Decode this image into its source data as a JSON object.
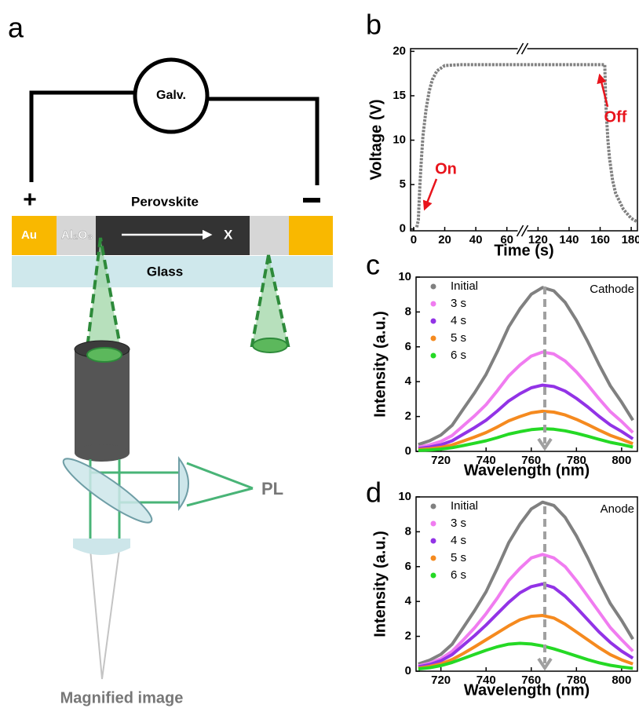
{
  "diagram": {
    "label": "a",
    "galvanometer": "Galv.",
    "plus": "+",
    "perovskite": "Perovskite",
    "electrode": "Au",
    "insulator": "Al₂O₃",
    "direction": "X",
    "substrate": "Glass",
    "signal": "PL",
    "output": "Magnified image"
  },
  "chart_data": [
    {
      "type": "line",
      "label": "b",
      "xlabel": "Time (s)",
      "ylabel": "Voltage (V)",
      "color": "#808080",
      "x": [
        2,
        3,
        3.5,
        4,
        5,
        6,
        8,
        10,
        12,
        15,
        20,
        30,
        50,
        60,
        120,
        140,
        160,
        163,
        163.5,
        164,
        165,
        166,
        168,
        170,
        175,
        180,
        184
      ],
      "values": [
        0.2,
        1,
        3,
        5,
        8,
        10.5,
        13.5,
        15.5,
        16.8,
        17.8,
        18.4,
        18.5,
        18.5,
        18.5,
        18.5,
        18.5,
        18.5,
        18.5,
        15,
        13,
        10,
        8,
        5.5,
        4,
        2.2,
        1.2,
        0.8
      ],
      "xlim": [
        -2,
        184
      ],
      "x_break": [
        68,
        112
      ],
      "xticks": [
        0,
        20,
        40,
        60,
        120,
        140,
        160,
        180
      ],
      "ylim": [
        -0.2,
        20.3
      ],
      "yticks": [
        0,
        5,
        10,
        15,
        20
      ],
      "annotations": [
        "On",
        "Off"
      ]
    },
    {
      "type": "line",
      "label": "c",
      "xlabel": "Wavelength (nm)",
      "ylabel": "Intensity (a.u.)",
      "annotation": "Cathode",
      "legend": "upper left",
      "x": [
        710,
        715,
        720,
        725,
        730,
        735,
        740,
        745,
        750,
        755,
        760,
        765,
        770,
        775,
        780,
        785,
        790,
        795,
        800,
        805
      ],
      "series": [
        {
          "name": "Initial",
          "color": "#808080",
          "values": [
            0.39,
            0.61,
            0.94,
            1.5,
            2.44,
            3.38,
            4.42,
            5.73,
            7.14,
            8.18,
            9.02,
            9.4,
            9.21,
            8.55,
            7.52,
            6.3,
            4.98,
            3.76,
            2.82,
            1.79
          ]
        },
        {
          "name": "3 s",
          "color": "#f07cf0",
          "values": [
            0.24,
            0.37,
            0.57,
            0.91,
            1.48,
            2.05,
            2.68,
            3.48,
            4.33,
            4.96,
            5.47,
            5.7,
            5.59,
            5.19,
            4.56,
            3.82,
            3.02,
            2.28,
            1.71,
            1.08
          ]
        },
        {
          "name": "4 s",
          "color": "#9233e6",
          "values": [
            0.16,
            0.25,
            0.38,
            0.61,
            0.99,
            1.37,
            1.79,
            2.32,
            2.89,
            3.31,
            3.65,
            3.8,
            3.72,
            3.46,
            3.04,
            2.55,
            2.01,
            1.52,
            1.14,
            0.72
          ]
        },
        {
          "name": "5 s",
          "color": "#f58a1f",
          "values": [
            0.1,
            0.15,
            0.23,
            0.37,
            0.6,
            0.83,
            1.08,
            1.4,
            1.75,
            2.0,
            2.21,
            2.3,
            2.25,
            2.09,
            1.84,
            1.54,
            1.22,
            0.92,
            0.69,
            0.44
          ]
        },
        {
          "name": "6 s",
          "color": "#25d925",
          "values": [
            0.05,
            0.08,
            0.13,
            0.21,
            0.34,
            0.47,
            0.61,
            0.79,
            0.99,
            1.13,
            1.25,
            1.3,
            1.27,
            1.18,
            1.04,
            0.87,
            0.69,
            0.52,
            0.39,
            0.25
          ]
        }
      ],
      "xlim": [
        709,
        807
      ],
      "xticks": [
        720,
        740,
        760,
        780,
        800
      ],
      "ylim": [
        0,
        10
      ],
      "yticks": [
        0,
        2,
        4,
        6,
        8,
        10
      ]
    },
    {
      "type": "line",
      "label": "d",
      "xlabel": "Wavelength (nm)",
      "ylabel": "Intensity (a.u.)",
      "annotation": "Anode",
      "legend": "upper left",
      "x": [
        710,
        715,
        720,
        725,
        730,
        735,
        740,
        745,
        750,
        755,
        760,
        765,
        770,
        775,
        780,
        785,
        790,
        795,
        800,
        805
      ],
      "series": [
        {
          "name": "Initial",
          "color": "#808080",
          "values": [
            0.41,
            0.63,
            0.97,
            1.55,
            2.52,
            3.49,
            4.56,
            5.92,
            7.37,
            8.44,
            9.31,
            9.7,
            9.51,
            8.83,
            7.76,
            6.5,
            5.14,
            3.88,
            2.91,
            1.84
          ]
        },
        {
          "name": "3 s",
          "color": "#f07cf0",
          "values": [
            0.3,
            0.46,
            0.71,
            1.14,
            1.8,
            2.5,
            3.3,
            4.2,
            5.2,
            5.9,
            6.5,
            6.7,
            6.5,
            6.0,
            5.2,
            4.3,
            3.4,
            2.5,
            1.8,
            1.15
          ]
        },
        {
          "name": "4 s",
          "color": "#9233e6",
          "values": [
            0.25,
            0.38,
            0.6,
            0.95,
            1.5,
            2.05,
            2.65,
            3.3,
            3.95,
            4.5,
            4.85,
            5.0,
            4.8,
            4.3,
            3.65,
            2.95,
            2.25,
            1.65,
            1.15,
            0.75
          ]
        },
        {
          "name": "5 s",
          "color": "#f58a1f",
          "values": [
            0.17,
            0.27,
            0.42,
            0.67,
            1.02,
            1.4,
            1.8,
            2.2,
            2.6,
            2.95,
            3.15,
            3.2,
            3.05,
            2.7,
            2.25,
            1.8,
            1.35,
            0.95,
            0.65,
            0.42
          ]
        },
        {
          "name": "6 s",
          "color": "#25d925",
          "values": [
            0.13,
            0.2,
            0.32,
            0.5,
            0.73,
            0.97,
            1.2,
            1.4,
            1.55,
            1.6,
            1.56,
            1.45,
            1.28,
            1.08,
            0.87,
            0.66,
            0.48,
            0.34,
            0.24,
            0.16
          ]
        }
      ],
      "xlim": [
        709,
        807
      ],
      "xticks": [
        720,
        740,
        760,
        780,
        800
      ],
      "ylim": [
        0,
        10
      ],
      "yticks": [
        0,
        2,
        4,
        6,
        8,
        10
      ]
    }
  ]
}
